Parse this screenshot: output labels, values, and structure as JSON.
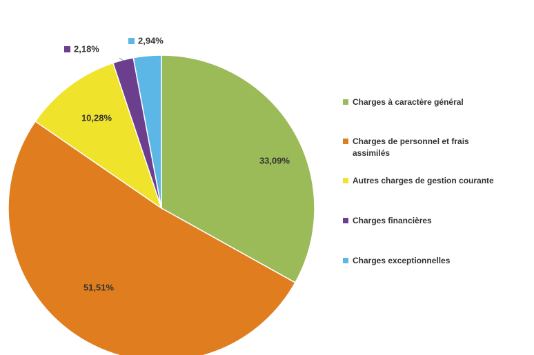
{
  "chart_data": {
    "type": "pie",
    "categories": [
      "Charges à caractère général",
      "Charges de personnel et frais assimilés",
      "Autres charges de gestion courante",
      "Charges financières",
      "Charges exceptionnelles"
    ],
    "values": [
      33.09,
      51.51,
      10.28,
      2.18,
      2.94
    ],
    "value_labels": [
      "33,09%",
      "51,51%",
      "10,28%",
      "2,18%",
      "2,94%"
    ],
    "colors": [
      "#9bbb59",
      "#e07d1f",
      "#f0e32c",
      "#6b3f8e",
      "#5cb6e6"
    ]
  }
}
